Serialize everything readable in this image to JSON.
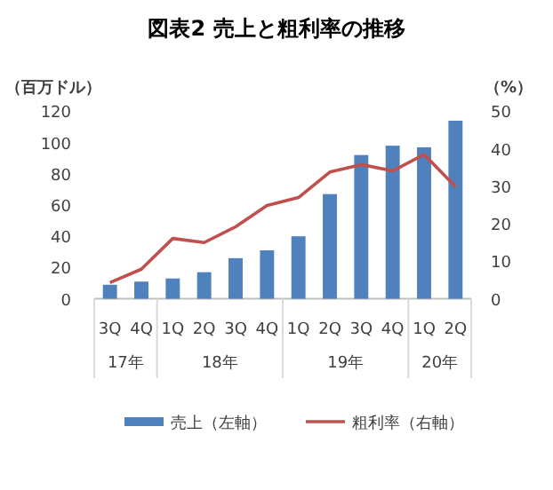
{
  "chart_data": {
    "type": "bar",
    "title": "図表2 売上と粗利率の推移",
    "ylabel": "（百万ドル）",
    "y2label": "（%）",
    "categories": [
      "3Q",
      "4Q",
      "1Q",
      "2Q",
      "3Q",
      "4Q",
      "1Q",
      "2Q",
      "3Q",
      "4Q",
      "1Q",
      "2Q"
    ],
    "series": [
      {
        "name": "売上（左軸）",
        "color": "#4f81bd",
        "values": [
          9,
          11,
          13,
          17,
          26,
          31,
          40,
          67,
          92,
          98,
          97,
          114
        ]
      },
      {
        "name": "粗利率（右軸）",
        "type": "line",
        "axis": "y2",
        "color": "#c0504d",
        "values": [
          4.3,
          7.9,
          16.1,
          15,
          19.2,
          24.9,
          27,
          33.8,
          35.8,
          34.1,
          38.5,
          29.9
        ]
      }
    ],
    "ylim": [
      0,
      120
    ],
    "yticks": [
      0,
      20,
      40,
      60,
      80,
      100,
      120
    ],
    "y2lim": [
      0,
      50
    ],
    "y2ticks": [
      0,
      10,
      20,
      30,
      40,
      50
    ],
    "annotations": [
      "17年",
      "18年",
      "19年",
      "20年"
    ],
    "grid": false,
    "legend": "bottom",
    "marker": "none",
    "line_style": "solid"
  }
}
